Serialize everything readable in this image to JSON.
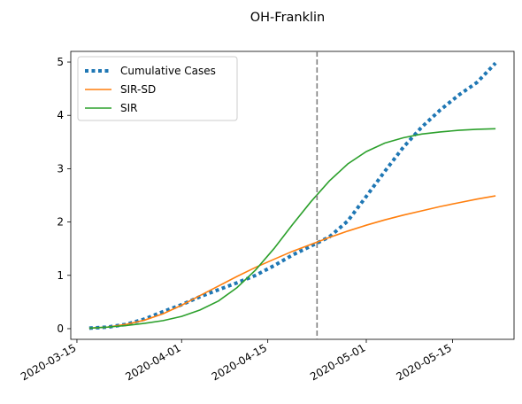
{
  "chart_data": {
    "type": "line",
    "title": "OH-Franklin",
    "xlabel": "",
    "ylabel": "",
    "x_axis_type": "date",
    "xlim": [
      "2020-03-14",
      "2020-05-25"
    ],
    "ylim": [
      -0.2,
      5.2
    ],
    "x_ticks": [
      "2020-03-15",
      "2020-04-01",
      "2020-04-15",
      "2020-05-01",
      "2020-05-15"
    ],
    "y_ticks": [
      0,
      1,
      2,
      3,
      4,
      5
    ],
    "grid": false,
    "legend_position": "top-left",
    "vertical_line": {
      "x": "2020-04-23",
      "style": "dashed",
      "color": "#7f7f7f"
    },
    "series": [
      {
        "name": "Cumulative Cases",
        "style": "dotted",
        "color": "#1f77b4",
        "x": [
          "2020-03-17",
          "2020-03-20",
          "2020-03-23",
          "2020-03-26",
          "2020-03-29",
          "2020-04-01",
          "2020-04-04",
          "2020-04-07",
          "2020-04-10",
          "2020-04-13",
          "2020-04-16",
          "2020-04-19",
          "2020-04-22",
          "2020-04-25",
          "2020-04-28",
          "2020-05-01",
          "2020-05-04",
          "2020-05-07",
          "2020-05-10",
          "2020-05-13",
          "2020-05-16",
          "2020-05-19",
          "2020-05-22"
        ],
        "y": [
          0.01,
          0.03,
          0.08,
          0.18,
          0.32,
          0.45,
          0.6,
          0.73,
          0.86,
          1.0,
          1.18,
          1.38,
          1.55,
          1.72,
          2.02,
          2.48,
          2.95,
          3.4,
          3.78,
          4.1,
          4.38,
          4.62,
          4.98
        ]
      },
      {
        "name": "SIR-SD",
        "style": "solid",
        "color": "#ff7f0e",
        "x": [
          "2020-03-17",
          "2020-03-20",
          "2020-03-23",
          "2020-03-26",
          "2020-03-29",
          "2020-04-01",
          "2020-04-04",
          "2020-04-07",
          "2020-04-10",
          "2020-04-13",
          "2020-04-16",
          "2020-04-19",
          "2020-04-22",
          "2020-04-25",
          "2020-04-28",
          "2020-05-01",
          "2020-05-04",
          "2020-05-07",
          "2020-05-10",
          "2020-05-13",
          "2020-05-16",
          "2020-05-19",
          "2020-05-22"
        ],
        "y": [
          0.01,
          0.03,
          0.08,
          0.16,
          0.28,
          0.44,
          0.62,
          0.8,
          0.98,
          1.15,
          1.3,
          1.45,
          1.58,
          1.71,
          1.83,
          1.94,
          2.04,
          2.13,
          2.21,
          2.29,
          2.36,
          2.43,
          2.49
        ]
      },
      {
        "name": "SIR",
        "style": "solid",
        "color": "#2ca02c",
        "x": [
          "2020-03-17",
          "2020-03-20",
          "2020-03-23",
          "2020-03-26",
          "2020-03-29",
          "2020-04-01",
          "2020-04-04",
          "2020-04-07",
          "2020-04-10",
          "2020-04-13",
          "2020-04-16",
          "2020-04-19",
          "2020-04-22",
          "2020-04-25",
          "2020-04-28",
          "2020-05-01",
          "2020-05-04",
          "2020-05-07",
          "2020-05-10",
          "2020-05-13",
          "2020-05-16",
          "2020-05-19",
          "2020-05-22"
        ],
        "y": [
          0.01,
          0.03,
          0.06,
          0.1,
          0.15,
          0.23,
          0.35,
          0.52,
          0.77,
          1.1,
          1.5,
          1.95,
          2.38,
          2.77,
          3.09,
          3.32,
          3.48,
          3.58,
          3.65,
          3.69,
          3.72,
          3.74,
          3.75
        ]
      }
    ]
  }
}
